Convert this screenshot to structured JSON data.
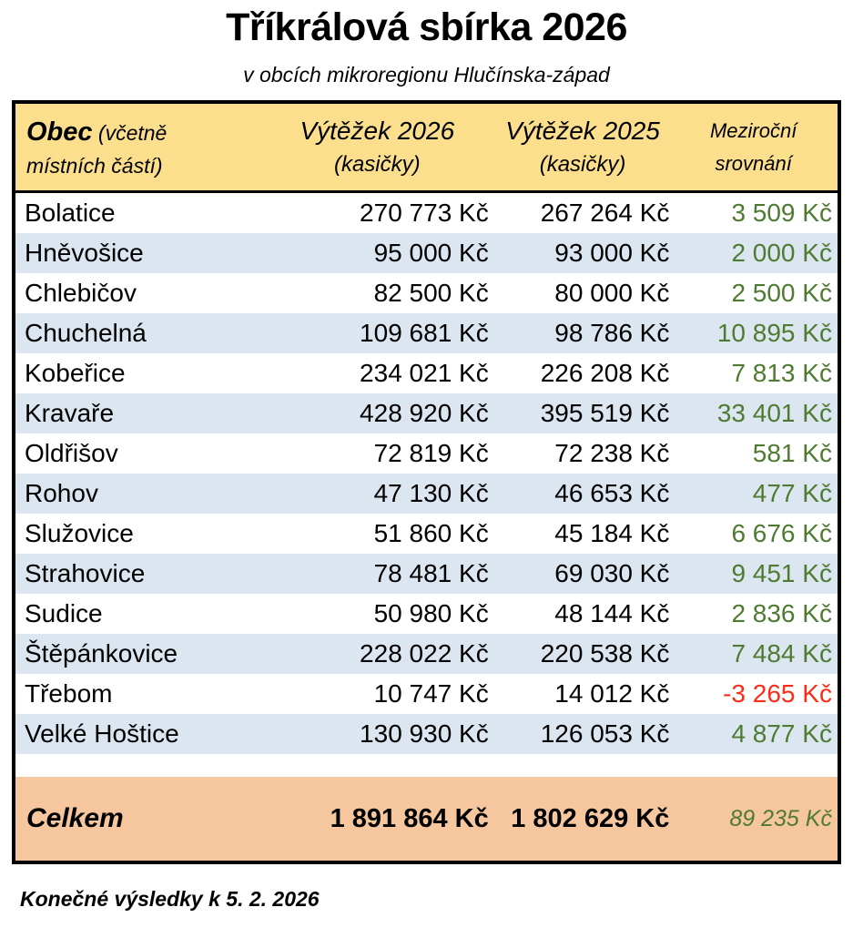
{
  "title": "Tříkrálová sbírka 2026",
  "subtitle": "v obcích mikroregionu Hlučínska-západ",
  "footer_note": "Konečné výsledky k 5. 2. 2026",
  "colors": {
    "header-bg": "#FBDF8D",
    "stripe-bg": "#DCE6F1",
    "total-bg": "#F6C79F",
    "positive": "#4E7B31",
    "negative": "#FA2D19",
    "border": "#000000"
  },
  "table": {
    "header": {
      "obec_label": "Obec",
      "obec_note_line1": "(včetně",
      "obec_note_line2": "místních částí)",
      "col2026_line1": "Výtěžek 2026",
      "col2026_line2": "(kasičky)",
      "col2025_line1": "Výtěžek 2025",
      "col2025_line2": "(kasičky)",
      "diff_line1": "Meziroční",
      "diff_line2": "srovnání"
    },
    "rows": [
      {
        "obec": "Bolatice",
        "v2026": "270 773 Kč",
        "v2025": "267 264 Kč",
        "diff": "3 509 Kč"
      },
      {
        "obec": "Hněvošice",
        "v2026": "95 000 Kč",
        "v2025": "93 000 Kč",
        "diff": "2 000 Kč"
      },
      {
        "obec": "Chlebičov",
        "v2026": "82 500 Kč",
        "v2025": "80 000 Kč",
        "diff": "2 500 Kč"
      },
      {
        "obec": "Chuchelná",
        "v2026": "109 681 Kč",
        "v2025": "98 786 Kč",
        "diff": "10 895 Kč"
      },
      {
        "obec": "Kobeřice",
        "v2026": "234 021 Kč",
        "v2025": "226 208 Kč",
        "diff": "7 813 Kč"
      },
      {
        "obec": "Kravaře",
        "v2026": "428 920 Kč",
        "v2025": "395 519 Kč",
        "diff": "33 401 Kč"
      },
      {
        "obec": "Oldřišov",
        "v2026": "72 819 Kč",
        "v2025": "72 238 Kč",
        "diff": "581 Kč"
      },
      {
        "obec": "Rohov",
        "v2026": "47 130 Kč",
        "v2025": "46 653 Kč",
        "diff": "477 Kč"
      },
      {
        "obec": "Služovice",
        "v2026": "51 860 Kč",
        "v2025": "45 184 Kč",
        "diff": "6 676 Kč"
      },
      {
        "obec": "Strahovice",
        "v2026": "78 481 Kč",
        "v2025": "69 030 Kč",
        "diff": "9 451 Kč"
      },
      {
        "obec": "Sudice",
        "v2026": "50 980 Kč",
        "v2025": "48 144 Kč",
        "diff": "2 836 Kč"
      },
      {
        "obec": "Štěpánkovice",
        "v2026": "228 022 Kč",
        "v2025": "220 538 Kč",
        "diff": "7 484 Kč"
      },
      {
        "obec": "Třebom",
        "v2026": "10 747 Kč",
        "v2025": "14 012 Kč",
        "diff": "-3 265 Kč"
      },
      {
        "obec": "Velké Hoštice",
        "v2026": "130 930 Kč",
        "v2025": "126 053 Kč",
        "diff": "4 877 Kč"
      }
    ],
    "total": {
      "label": "Celkem",
      "v2026": "1 891 864 Kč",
      "v2025": "1 802 629 Kč",
      "diff": "89 235 Kč"
    }
  },
  "chart_data": {
    "type": "table",
    "title": "Tříkrálová sbírka 2026",
    "subtitle": "v obcích mikroregionu Hlučínska-západ",
    "columns": [
      "Obec (včetně místních částí)",
      "Výtěžek 2026 (kasičky)",
      "Výtěžek 2025 (kasičky)",
      "Meziroční srovnání"
    ],
    "unit": "Kč",
    "rows": [
      [
        "Bolatice",
        270773,
        267264,
        3509
      ],
      [
        "Hněvošice",
        95000,
        93000,
        2000
      ],
      [
        "Chlebičov",
        82500,
        80000,
        2500
      ],
      [
        "Chuchelná",
        109681,
        98786,
        10895
      ],
      [
        "Kobeřice",
        234021,
        226208,
        7813
      ],
      [
        "Kravaře",
        428920,
        395519,
        33401
      ],
      [
        "Oldřišov",
        72819,
        72238,
        581
      ],
      [
        "Rohov",
        47130,
        46653,
        477
      ],
      [
        "Služovice",
        51860,
        45184,
        6676
      ],
      [
        "Strahovice",
        78481,
        69030,
        9451
      ],
      [
        "Sudice",
        50980,
        48144,
        2836
      ],
      [
        "Štěpánkovice",
        228022,
        220538,
        7484
      ],
      [
        "Třebom",
        10747,
        14012,
        -3265
      ],
      [
        "Velké Hoštice",
        130930,
        126053,
        4877
      ]
    ],
    "total": [
      "Celkem",
      1891864,
      1802629,
      89235
    ],
    "note": "Konečné výsledky k 5. 2. 2026"
  }
}
